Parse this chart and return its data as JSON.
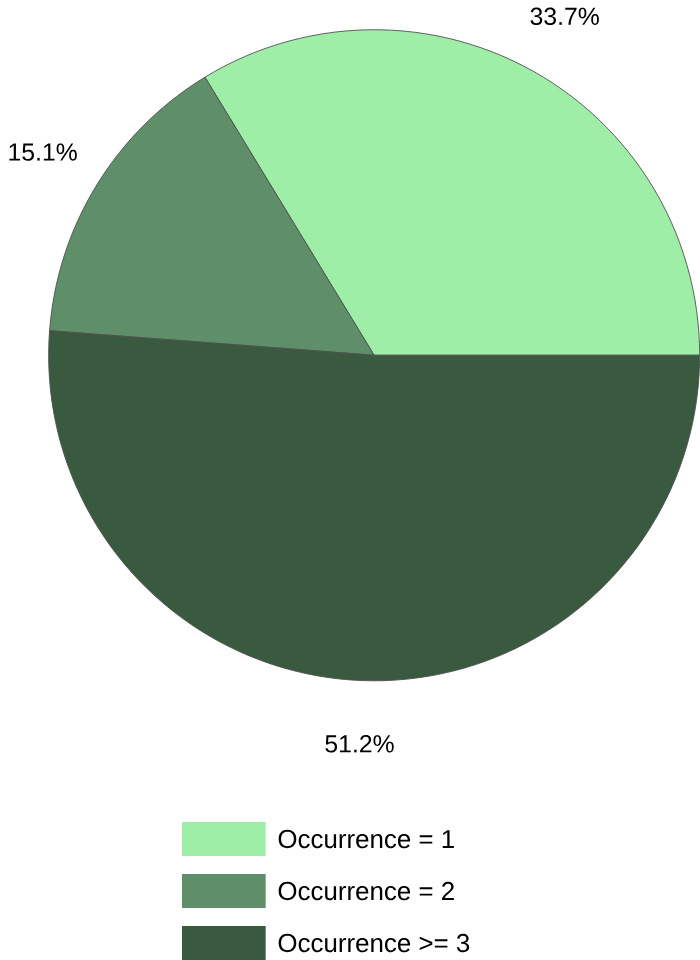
{
  "chart_data": {
    "type": "pie",
    "categories": [
      "Occurrence = 1",
      "Occurrence = 2",
      "Occurrence >= 3"
    ],
    "values": [
      33.7,
      15.1,
      51.2
    ],
    "colors": [
      "#9eeea8",
      "#5e8f68",
      "#3a5a40"
    ],
    "value_labels": [
      "33.7%",
      "15.1%",
      "51.2%"
    ],
    "legend": "bottom"
  }
}
